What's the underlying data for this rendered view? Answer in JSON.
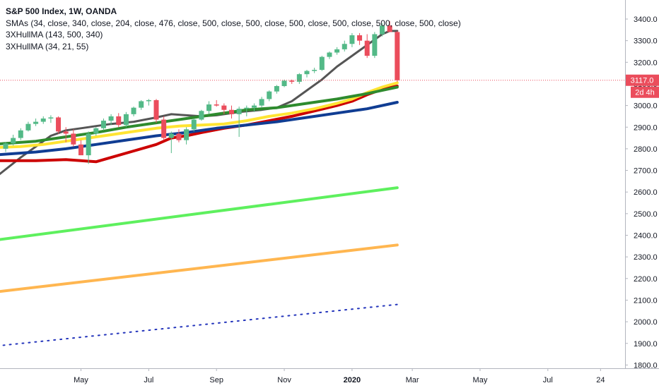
{
  "chart_data": {
    "type": "candlestick",
    "title": "S&P 500 Index, 1W, OANDA",
    "indicators": [
      "SMAs (34, close, 340, close, 204, close, 476, close, 500, close, 500, close, 500, close, 500, close, 500, close, 500, close)",
      "3XHullMA (143, 500, 340)",
      "3XHullMA (34, 21, 55)"
    ],
    "ylim": [
      1800,
      3450
    ],
    "y_ticks": [
      "3400.0",
      "3300.0",
      "3200.0",
      "3100.0",
      "3000.0",
      "2900.0",
      "2800.0",
      "2700.0",
      "2600.0",
      "2500.0",
      "2400.0",
      "2300.0",
      "2200.0",
      "2100.0",
      "2000.0",
      "1900.0",
      "1800.0"
    ],
    "x_ticks": [
      {
        "label": "May",
        "week": 10
      },
      {
        "label": "Jul",
        "week": 19
      },
      {
        "label": "Sep",
        "week": 28
      },
      {
        "label": "Nov",
        "week": 37
      },
      {
        "label": "2020",
        "week": 46
      },
      {
        "label": "Mar",
        "week": 54
      },
      {
        "label": "May",
        "week": 63
      },
      {
        "label": "Jul",
        "week": 72
      },
      {
        "label": "24",
        "week": 79
      }
    ],
    "last_price": {
      "label": "3117.0",
      "value": 3117
    },
    "countdown": "2d 4h",
    "candles": [
      [
        2800,
        2830,
        2785,
        2825
      ],
      [
        2825,
        2865,
        2815,
        2850
      ],
      [
        2850,
        2895,
        2840,
        2885
      ],
      [
        2885,
        2925,
        2880,
        2915
      ],
      [
        2915,
        2940,
        2905,
        2925
      ],
      [
        2925,
        2950,
        2915,
        2940
      ],
      [
        2940,
        2955,
        2920,
        2945
      ],
      [
        2945,
        2950,
        2870,
        2880
      ],
      [
        2880,
        2900,
        2830,
        2870
      ],
      [
        2870,
        2890,
        2810,
        2820
      ],
      [
        2820,
        2840,
        2775,
        2770
      ],
      [
        2770,
        2880,
        2730,
        2870
      ],
      [
        2870,
        2900,
        2860,
        2895
      ],
      [
        2895,
        2940,
        2885,
        2930
      ],
      [
        2930,
        2960,
        2910,
        2950
      ],
      [
        2950,
        2965,
        2900,
        2910
      ],
      [
        2910,
        2970,
        2900,
        2960
      ],
      [
        2960,
        2995,
        2950,
        2990
      ],
      [
        2990,
        3025,
        2980,
        3020
      ],
      [
        3020,
        3030,
        3000,
        3025
      ],
      [
        3025,
        3030,
        2920,
        2935
      ],
      [
        2935,
        2950,
        2840,
        2850
      ],
      [
        2850,
        2880,
        2780,
        2870
      ],
      [
        2870,
        2890,
        2830,
        2840
      ],
      [
        2840,
        2900,
        2820,
        2890
      ],
      [
        2890,
        2940,
        2880,
        2935
      ],
      [
        2935,
        2980,
        2930,
        2975
      ],
      [
        2975,
        3020,
        2960,
        3005
      ],
      [
        3005,
        3025,
        2995,
        3000
      ],
      [
        3000,
        3010,
        2960,
        2980
      ],
      [
        2980,
        3000,
        2940,
        2960
      ],
      [
        2960,
        2995,
        2855,
        2985
      ],
      [
        2985,
        3000,
        2950,
        2990
      ],
      [
        2990,
        3010,
        2970,
        3000
      ],
      [
        3000,
        3040,
        2990,
        3030
      ],
      [
        3030,
        3070,
        3020,
        3065
      ],
      [
        3065,
        3095,
        3055,
        3090
      ],
      [
        3090,
        3120,
        3085,
        3115
      ],
      [
        3115,
        3120,
        3100,
        3110
      ],
      [
        3110,
        3150,
        3100,
        3145
      ],
      [
        3145,
        3165,
        3130,
        3160
      ],
      [
        3160,
        3175,
        3150,
        3165
      ],
      [
        3165,
        3230,
        3160,
        3225
      ],
      [
        3225,
        3250,
        3215,
        3245
      ],
      [
        3245,
        3270,
        3235,
        3260
      ],
      [
        3260,
        3300,
        3250,
        3285
      ],
      [
        3285,
        3335,
        3270,
        3325
      ],
      [
        3325,
        3335,
        3280,
        3300
      ],
      [
        3300,
        3330,
        3220,
        3230
      ],
      [
        3230,
        3340,
        3220,
        3330
      ],
      [
        3330,
        3380,
        3320,
        3370
      ],
      [
        3370,
        3390,
        3350,
        3340
      ],
      [
        3340,
        3345,
        3110,
        3117
      ]
    ],
    "lines": [
      {
        "color": "#555555",
        "width": 3,
        "dash": "",
        "points": [
          [
            -2,
            2650
          ],
          [
            2,
            2760
          ],
          [
            6,
            2860
          ],
          [
            8,
            2885
          ],
          [
            10,
            2895
          ],
          [
            12,
            2905
          ],
          [
            14,
            2915
          ],
          [
            17,
            2925
          ],
          [
            20,
            2945
          ],
          [
            22,
            2960
          ],
          [
            24,
            2955
          ],
          [
            26,
            2950
          ],
          [
            28,
            2955
          ],
          [
            31,
            2970
          ],
          [
            34,
            2980
          ],
          [
            36,
            2990
          ],
          [
            38,
            3020
          ],
          [
            40,
            3070
          ],
          [
            42,
            3120
          ],
          [
            44,
            3180
          ],
          [
            46,
            3230
          ],
          [
            48,
            3280
          ],
          [
            50,
            3330
          ],
          [
            51,
            3345
          ],
          [
            52,
            3345
          ]
        ]
      },
      {
        "color": "#cc0000",
        "width": 4,
        "dash": "",
        "points": [
          [
            -2,
            2745
          ],
          [
            4,
            2745
          ],
          [
            8,
            2750
          ],
          [
            10,
            2745
          ],
          [
            12,
            2740
          ],
          [
            14,
            2760
          ],
          [
            17,
            2790
          ],
          [
            20,
            2820
          ],
          [
            22,
            2850
          ],
          [
            24,
            2860
          ],
          [
            26,
            2875
          ],
          [
            29,
            2895
          ],
          [
            32,
            2910
          ],
          [
            35,
            2930
          ],
          [
            38,
            2950
          ],
          [
            41,
            2975
          ],
          [
            44,
            3000
          ],
          [
            46,
            3020
          ],
          [
            48,
            3050
          ],
          [
            50,
            3075
          ],
          [
            52,
            3090
          ]
        ]
      },
      {
        "color": "#ffe433",
        "width": 4,
        "dash": "",
        "points": [
          [
            -2,
            2805
          ],
          [
            2,
            2810
          ],
          [
            5,
            2820
          ],
          [
            8,
            2835
          ],
          [
            11,
            2850
          ],
          [
            14,
            2865
          ],
          [
            17,
            2880
          ],
          [
            20,
            2895
          ],
          [
            23,
            2905
          ],
          [
            26,
            2910
          ],
          [
            29,
            2915
          ],
          [
            32,
            2930
          ],
          [
            35,
            2950
          ],
          [
            38,
            2965
          ],
          [
            41,
            2985
          ],
          [
            44,
            3010
          ],
          [
            46,
            3030
          ],
          [
            48,
            3060
          ],
          [
            50,
            3085
          ],
          [
            52,
            3105
          ]
        ]
      },
      {
        "color": "#2e8b2e",
        "width": 4,
        "dash": "",
        "points": [
          [
            -2,
            2820
          ],
          [
            4,
            2835
          ],
          [
            8,
            2855
          ],
          [
            12,
            2875
          ],
          [
            16,
            2900
          ],
          [
            20,
            2920
          ],
          [
            24,
            2940
          ],
          [
            28,
            2960
          ],
          [
            32,
            2980
          ],
          [
            36,
            2990
          ],
          [
            40,
            3010
          ],
          [
            44,
            3030
          ],
          [
            48,
            3055
          ],
          [
            50,
            3070
          ],
          [
            52,
            3085
          ]
        ]
      },
      {
        "color": "#103d93",
        "width": 4,
        "dash": "",
        "points": [
          [
            -2,
            2770
          ],
          [
            4,
            2785
          ],
          [
            8,
            2800
          ],
          [
            12,
            2820
          ],
          [
            16,
            2840
          ],
          [
            20,
            2860
          ],
          [
            24,
            2875
          ],
          [
            28,
            2895
          ],
          [
            32,
            2910
          ],
          [
            36,
            2925
          ],
          [
            40,
            2945
          ],
          [
            44,
            2965
          ],
          [
            48,
            2985
          ],
          [
            52,
            3015
          ]
        ]
      },
      {
        "color": "#5ef05e",
        "width": 4,
        "dash": "",
        "points": [
          [
            -2,
            2375
          ],
          [
            52,
            2620
          ]
        ]
      },
      {
        "color": "#ffb650",
        "width": 4,
        "dash": "",
        "points": [
          [
            -2,
            2135
          ],
          [
            52,
            2355
          ]
        ]
      },
      {
        "color": "#2233bb",
        "width": 2,
        "dash": "2 7",
        "points": [
          [
            -2,
            1885
          ],
          [
            52,
            2080
          ]
        ]
      }
    ]
  }
}
